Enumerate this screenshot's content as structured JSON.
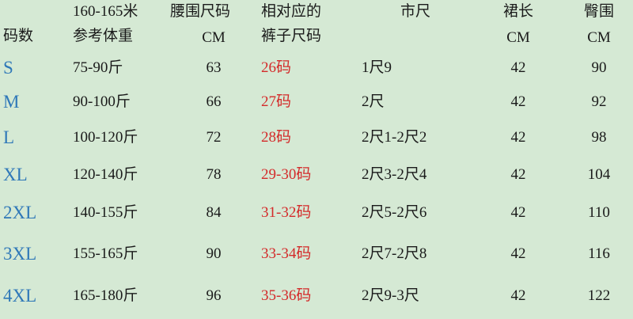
{
  "colors": {
    "background": "#d5e9d4",
    "size_label": "#2f78b8",
    "pants_size": "#d42a2a"
  },
  "headers": {
    "size": "码数",
    "weight_line1": "160-165米",
    "weight_line2": "参考体重",
    "waist_line1": "腰围尺码",
    "waist_line2": "CM",
    "pants_line1": "相对应的",
    "pants_line2": "裤子尺码",
    "shichi": "市尺",
    "length_line1": "裙长",
    "length_line2": "CM",
    "hip_line1": "臀围",
    "hip_line2": "CM"
  },
  "rows": [
    {
      "size": "S",
      "weight": "75-90斤",
      "waist": "63",
      "pants": "26码",
      "shichi": "1尺9",
      "length": "42",
      "hip": "90"
    },
    {
      "size": "M",
      "weight": "90-100斤",
      "waist": "66",
      "pants": "27码",
      "shichi": "2尺",
      "length": "42",
      "hip": "92"
    },
    {
      "size": "L",
      "weight": "100-120斤",
      "waist": "72",
      "pants": "28码",
      "shichi": "2尺1-2尺2",
      "length": "42",
      "hip": "98"
    },
    {
      "size": "XL",
      "weight": "120-140斤",
      "waist": "78",
      "pants": "29-30码",
      "shichi": "2尺3-2尺4",
      "length": "42",
      "hip": "104"
    },
    {
      "size": "2XL",
      "weight": "140-155斤",
      "waist": "84",
      "pants": "31-32码",
      "shichi": "2尺5-2尺6",
      "length": "42",
      "hip": "110"
    },
    {
      "size": "3XL",
      "weight": "155-165斤",
      "waist": "90",
      "pants": "33-34码",
      "shichi": "2尺7-2尺8",
      "length": "42",
      "hip": "116"
    },
    {
      "size": "4XL",
      "weight": "165-180斤",
      "waist": "96",
      "pants": "35-36码",
      "shichi": "2尺9-3尺",
      "length": "42",
      "hip": "122"
    }
  ]
}
